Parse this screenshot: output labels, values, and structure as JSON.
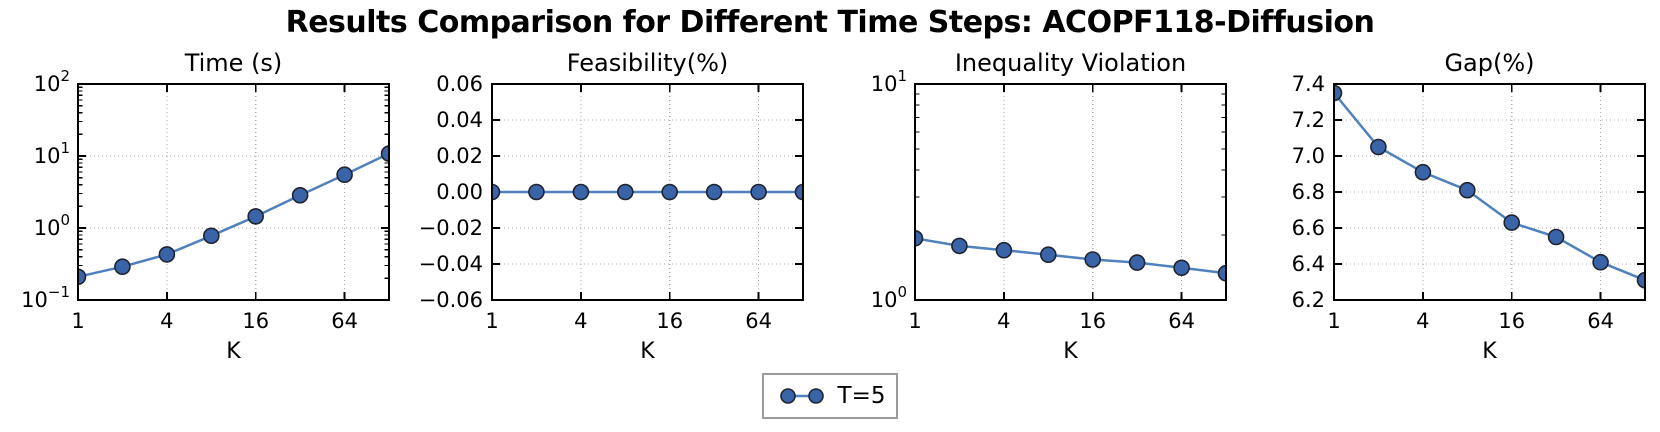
{
  "title": "Results Comparison for Different Time Steps: ACOPF118-Diffusion",
  "legend": {
    "label": "T=5"
  },
  "colors": {
    "line": "#4f81bd",
    "marker_fill": "#3a64a8",
    "marker_edge": "#1f2430",
    "grid": "#aaaaaa",
    "axis": "#000000",
    "legend_border": "#9a9a9a"
  },
  "chart_data": [
    {
      "type": "line",
      "title": "Time (s)",
      "xlabel": "K",
      "xscale": "log2",
      "xlim": [
        1,
        128
      ],
      "xticks": [
        1,
        4,
        16,
        64
      ],
      "xtick_labels": [
        "1",
        "4",
        "16",
        "64"
      ],
      "yscale": "log10",
      "ylim": [
        0.1,
        100
      ],
      "ytick_exponents": [
        2,
        1,
        0,
        -1
      ],
      "x": [
        1,
        2,
        4,
        8,
        16,
        32,
        64,
        128
      ],
      "series": [
        {
          "name": "T=5",
          "values": [
            0.21,
            0.29,
            0.43,
            0.78,
            1.45,
            2.85,
            5.5,
            10.8
          ]
        }
      ],
      "grid": true,
      "legend_position": "none"
    },
    {
      "type": "line",
      "title": "Feasibility(%)",
      "xlabel": "K",
      "xscale": "log2",
      "xlim": [
        1,
        128
      ],
      "xticks": [
        1,
        4,
        16,
        64
      ],
      "xtick_labels": [
        "1",
        "4",
        "16",
        "64"
      ],
      "yscale": "linear",
      "ylim": [
        -0.06,
        0.06
      ],
      "yticks": [
        0.06,
        0.04,
        0.02,
        0.0,
        -0.02,
        -0.04,
        -0.06
      ],
      "ytick_labels": [
        "0.06",
        "0.04",
        "0.02",
        "0.00",
        "−0.02",
        "−0.04",
        "−0.06"
      ],
      "x": [
        1,
        2,
        4,
        8,
        16,
        32,
        64,
        128
      ],
      "series": [
        {
          "name": "T=5",
          "values": [
            0.0,
            0.0,
            0.0,
            0.0,
            0.0,
            0.0,
            0.0,
            0.0
          ]
        }
      ],
      "grid": true,
      "legend_position": "none"
    },
    {
      "type": "line",
      "title": "Inequality Violation",
      "xlabel": "K",
      "xscale": "log2",
      "xlim": [
        1,
        128
      ],
      "xticks": [
        1,
        4,
        16,
        64
      ],
      "xtick_labels": [
        "1",
        "4",
        "16",
        "64"
      ],
      "yscale": "log10",
      "ylim": [
        1,
        10
      ],
      "ytick_exponents": [
        1,
        0
      ],
      "x": [
        1,
        2,
        4,
        8,
        16,
        32,
        64,
        128
      ],
      "series": [
        {
          "name": "T=5",
          "values": [
            1.93,
            1.78,
            1.7,
            1.62,
            1.54,
            1.49,
            1.41,
            1.33
          ]
        }
      ],
      "grid": true,
      "legend_position": "none"
    },
    {
      "type": "line",
      "title": "Gap(%)",
      "xlabel": "K",
      "xscale": "log2",
      "xlim": [
        1,
        128
      ],
      "xticks": [
        1,
        4,
        16,
        64
      ],
      "xtick_labels": [
        "1",
        "4",
        "16",
        "64"
      ],
      "yscale": "linear",
      "ylim": [
        6.2,
        7.4
      ],
      "yticks": [
        7.4,
        7.2,
        7.0,
        6.8,
        6.6,
        6.4,
        6.2
      ],
      "ytick_labels": [
        "7.4",
        "7.2",
        "7.0",
        "6.8",
        "6.6",
        "6.4",
        "6.2"
      ],
      "x": [
        1,
        2,
        4,
        8,
        16,
        32,
        64,
        128
      ],
      "series": [
        {
          "name": "T=5",
          "values": [
            7.35,
            7.05,
            6.91,
            6.81,
            6.63,
            6.55,
            6.41,
            6.31
          ]
        }
      ],
      "grid": true,
      "legend_position": "none"
    }
  ]
}
